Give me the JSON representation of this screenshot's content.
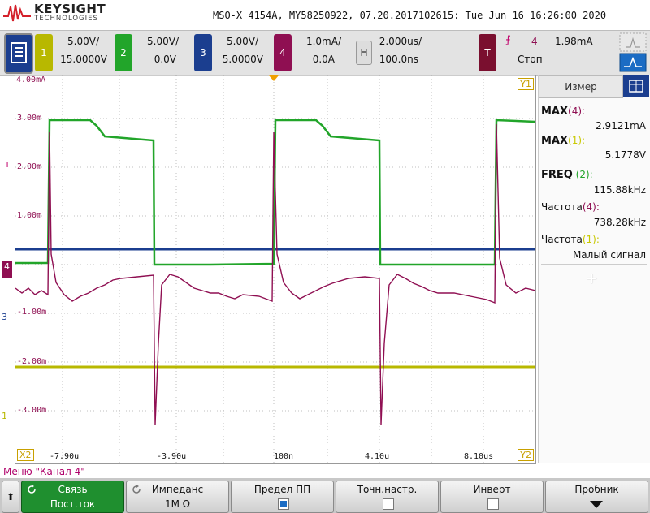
{
  "header": {
    "brand_name": "KEYSIGHT",
    "brand_sub": "TECHNOLOGIES",
    "title_line": "MSO-X 4154A, MY58250922, 07.20.2017102615: Tue Jun 16 16:26:00 2020"
  },
  "channels": [
    {
      "id": "1",
      "scale": "5.00V/",
      "offset": "15.0000V",
      "color": "#c8c800"
    },
    {
      "id": "2",
      "scale": "5.00V/",
      "offset": "0.0V",
      "color": "#22a52a"
    },
    {
      "id": "3",
      "scale": "5.00V/",
      "offset": "5.0000V",
      "color": "#1b3e8f"
    },
    {
      "id": "4",
      "scale": "1.0mA/",
      "offset": "0.0A",
      "color": "#8f0f52"
    }
  ],
  "horizontal": {
    "button": "H",
    "scale": "2.000us/",
    "delay": "100.0ns"
  },
  "trigger": {
    "button": "T",
    "source": "4",
    "level": "1.98mA",
    "state": "Стоп",
    "slope_symbol": "⨍"
  },
  "plot": {
    "y_labels": [
      "4.00mA",
      "3.00m",
      "2.00m",
      "1.00m",
      "-1.00m",
      "-2.00m",
      "-3.00m"
    ],
    "x_labels": [
      "-7.90u",
      "-3.90u",
      "100n",
      "4.10u",
      "8.10us"
    ],
    "markers": {
      "y1": "Y1",
      "y2": "Y2",
      "x2": "X2",
      "ch4": "4",
      "ch3": "3",
      "ch1": "1",
      "trig": "T"
    }
  },
  "measurements": {
    "tab": "Измер",
    "items": [
      {
        "label": "MAX",
        "src": "(4):",
        "value": "2.9121mA",
        "color": "#8f0f52",
        "bold": true
      },
      {
        "label": "MAX",
        "src": "(1):",
        "value": "5.1778V",
        "color": "#c8c800",
        "bold": true
      },
      {
        "label": "FREQ",
        "src": "(2):",
        "value": "115.88kHz",
        "color": "#22a52a",
        "bold": true
      },
      {
        "label": "Частота",
        "src": "(4):",
        "value": "738.28kHz",
        "color": "#8f0f52",
        "bold": false
      },
      {
        "label": "Частота",
        "src": "(1):",
        "value": "Малый сигнал",
        "color": "#c8c800",
        "bold": false
      }
    ],
    "add_symbol": "+"
  },
  "softkeys": {
    "menu_title": "Меню \"Канал 4\"",
    "back_symbol": "⬆",
    "keys": [
      {
        "label": "Связь",
        "value": "Пост.ток",
        "active": true
      },
      {
        "label": "Импеданс",
        "value": "1M Ω",
        "active": false
      },
      {
        "label": "Предел ПП",
        "value": "",
        "active": false
      },
      {
        "label": "Точн.настр.",
        "value": "",
        "active": false
      },
      {
        "label": "Инверт",
        "value": "",
        "active": false
      },
      {
        "label": "Пробник",
        "value": "",
        "active": false
      }
    ]
  }
}
